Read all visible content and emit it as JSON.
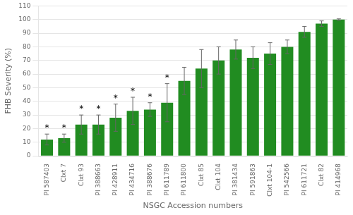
{
  "chart_data": {
    "type": "bar",
    "categories": [
      "PI 587403",
      "Clxt 7",
      "Clxt 93",
      "PI 388663",
      "PI 428911",
      "PI 434716",
      "PI 388676",
      "PI 611789",
      "PI 611800",
      "Clxt 85",
      "Clxt 104",
      "PI 381434",
      "PI 591863",
      "Clxt 104-1",
      "PI 542566",
      "PI 611721",
      "Clxt 82",
      "PI 414968"
    ],
    "values": [
      12,
      13,
      23,
      23,
      28,
      33,
      34,
      39,
      55,
      64,
      70,
      78,
      72,
      75,
      80,
      91,
      97,
      100
    ],
    "errors": [
      4,
      3,
      7,
      7,
      10,
      10,
      5,
      14,
      10,
      14,
      10,
      7,
      8,
      8,
      5,
      4,
      2,
      0.5
    ],
    "color": "#218c21",
    "x_label": "NSGC Accession numbers",
    "y_label": "FHB Severity (%)",
    "ylim": [
      0,
      110
    ],
    "yticks": [
      0,
      10,
      20,
      30,
      40,
      50,
      60,
      70,
      80,
      90,
      100,
      110
    ],
    "grid": true,
    "annotations": [
      {
        "category": "PI 587403",
        "text": "*"
      },
      {
        "category": "Clxt 7",
        "text": "*"
      },
      {
        "category": "Clxt 93",
        "text": "*"
      },
      {
        "category": "PI 388663",
        "text": "*"
      },
      {
        "category": "PI 428911",
        "text": "*"
      },
      {
        "category": "PI 434716",
        "text": "*"
      },
      {
        "category": "PI 388676",
        "text": "*"
      },
      {
        "category": "PI 611789",
        "text": "*"
      }
    ]
  }
}
